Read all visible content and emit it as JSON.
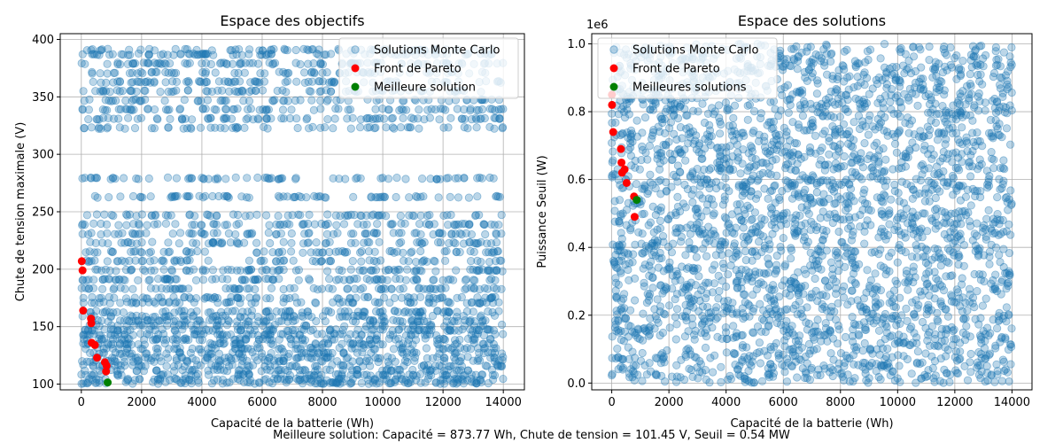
{
  "footer": "Meilleure solution: Capacité = 873.77 Wh, Chute de tension = 101.45 V, Seuil = 0.54 MW",
  "colors": {
    "monte_carlo": "#1f77b4",
    "pareto": "#ff0000",
    "best": "#008000"
  },
  "chart_data": [
    {
      "type": "scatter",
      "title": "Espace des objectifs",
      "xlabel": "Capacité de la batterie (Wh)",
      "ylabel": "Chute de tension maximale (V)",
      "xlim": [
        -700,
        14700
      ],
      "ylim": [
        95,
        405
      ],
      "xticks": [
        0,
        2000,
        4000,
        6000,
        8000,
        10000,
        12000,
        14000
      ],
      "yticks": [
        100,
        150,
        200,
        250,
        300,
        350,
        400
      ],
      "offset_label": "",
      "grid": true,
      "legend_position": "upper-right",
      "legend": [
        "Solutions Monte Carlo",
        "Front de Pareto",
        "Meilleure solution"
      ],
      "monte_carlo": {
        "x_range": [
          0,
          14000
        ],
        "count": 3000,
        "y_levels": [
          101,
          104,
          108,
          112,
          116,
          120,
          123,
          127,
          131,
          135,
          139,
          143,
          147,
          151,
          155,
          159,
          163,
          171,
          175,
          183,
          191,
          199,
          207,
          215,
          223,
          231,
          239,
          247,
          263,
          279,
          323,
          331,
          339,
          347,
          355,
          363,
          371,
          379,
          387,
          391
        ]
      },
      "pareto": [
        {
          "x": 15,
          "y": 207
        },
        {
          "x": 40,
          "y": 199
        },
        {
          "x": 60,
          "y": 164
        },
        {
          "x": 320,
          "y": 157
        },
        {
          "x": 330,
          "y": 153
        },
        {
          "x": 340,
          "y": 136
        },
        {
          "x": 450,
          "y": 134
        },
        {
          "x": 520,
          "y": 123
        },
        {
          "x": 780,
          "y": 119
        },
        {
          "x": 820,
          "y": 111
        },
        {
          "x": 840,
          "y": 116
        }
      ],
      "best": [
        {
          "x": 873.77,
          "y": 101.45
        }
      ]
    },
    {
      "type": "scatter",
      "title": "Espace des solutions",
      "xlabel": "Capacité de la batterie (Wh)",
      "ylabel": "Puissance Seuil (W)",
      "xlim": [
        -700,
        14700
      ],
      "ylim": [
        -0.02,
        1.03
      ],
      "xticks": [
        0,
        2000,
        4000,
        6000,
        8000,
        10000,
        12000,
        14000
      ],
      "yticks": [
        0.0,
        0.2,
        0.4,
        0.6,
        0.8,
        1.0
      ],
      "offset_label": "1e6",
      "grid": true,
      "legend_position": "upper-left",
      "legend": [
        "Solutions Monte Carlo",
        "Front de Pareto",
        "Meilleures solutions"
      ],
      "monte_carlo": {
        "x_range": [
          0,
          14000
        ],
        "y_range": [
          0.0,
          1.0
        ],
        "count": 3000
      },
      "pareto": [
        {
          "x": 5,
          "y": 0.85
        },
        {
          "x": 10,
          "y": 0.82
        },
        {
          "x": 50,
          "y": 0.74
        },
        {
          "x": 320,
          "y": 0.69
        },
        {
          "x": 340,
          "y": 0.65
        },
        {
          "x": 360,
          "y": 0.62
        },
        {
          "x": 450,
          "y": 0.63
        },
        {
          "x": 520,
          "y": 0.59
        },
        {
          "x": 780,
          "y": 0.55
        },
        {
          "x": 800,
          "y": 0.49
        }
      ],
      "best": [
        {
          "x": 873.77,
          "y": 0.54
        }
      ]
    }
  ]
}
